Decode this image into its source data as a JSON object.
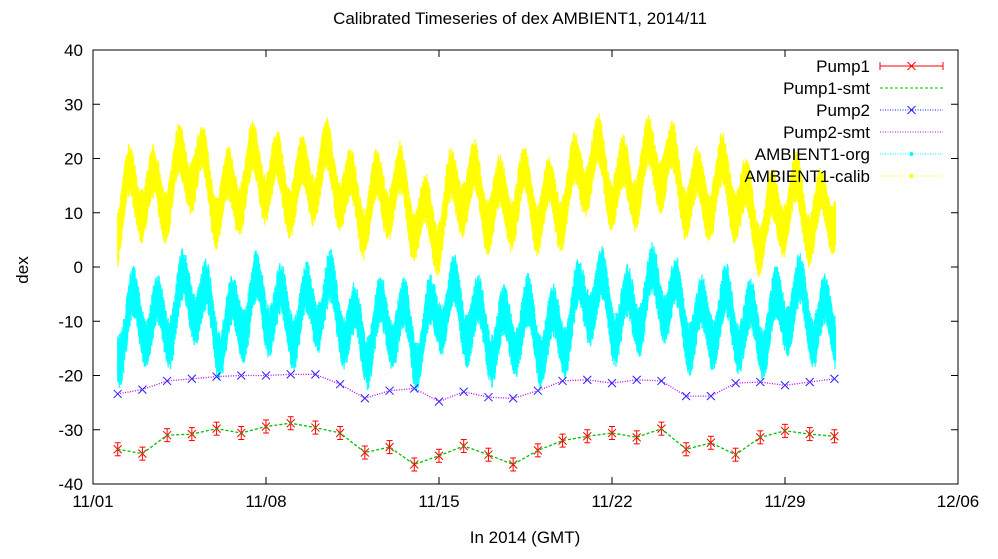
{
  "chart_data": {
    "type": "line",
    "title": "Calibrated Timeseries of dex AMBIENT1, 2014/11",
    "xlabel": "In 2014 (GMT)",
    "ylabel": "dex",
    "xlim": [
      "2014-11-01",
      "2014-12-06"
    ],
    "ylim": [
      -40,
      40
    ],
    "x_ticks": [
      "11/01",
      "11/08",
      "11/15",
      "11/22",
      "11/29",
      "12/06"
    ],
    "y_ticks": [
      -40,
      -30,
      -20,
      -10,
      0,
      10,
      20,
      30,
      40
    ],
    "grid": false,
    "legend_position": "top-right",
    "series": [
      {
        "name": "Pump1",
        "color": "#ff0000",
        "style": "points-errorbars-x",
        "points": [
          [
            "2014-11-02",
            -33.6
          ],
          [
            "2014-11-03",
            -34.4
          ],
          [
            "2014-11-04",
            -31.0
          ],
          [
            "2014-11-05",
            -30.8
          ],
          [
            "2014-11-06",
            -29.8
          ],
          [
            "2014-11-07",
            -30.6
          ],
          [
            "2014-11-08",
            -29.4
          ],
          [
            "2014-11-09",
            -28.8
          ],
          [
            "2014-11-10",
            -29.6
          ],
          [
            "2014-11-11",
            -30.6
          ],
          [
            "2014-11-12",
            -34.2
          ],
          [
            "2014-11-13",
            -33.2
          ],
          [
            "2014-11-14",
            -36.4
          ],
          [
            "2014-11-15",
            -34.8
          ],
          [
            "2014-11-16",
            -33.0
          ],
          [
            "2014-11-17",
            -34.6
          ],
          [
            "2014-11-18",
            -36.4
          ],
          [
            "2014-11-19",
            -33.8
          ],
          [
            "2014-11-20",
            -32.0
          ],
          [
            "2014-11-21",
            -31.2
          ],
          [
            "2014-11-22",
            -30.6
          ],
          [
            "2014-11-23",
            -31.4
          ],
          [
            "2014-11-24",
            -29.8
          ],
          [
            "2014-11-25",
            -33.6
          ],
          [
            "2014-11-26",
            -32.4
          ],
          [
            "2014-11-27",
            -34.6
          ],
          [
            "2014-11-28",
            -31.4
          ],
          [
            "2014-11-29",
            -30.2
          ],
          [
            "2014-11-30",
            -30.8
          ],
          [
            "2014-12-01",
            -31.2
          ]
        ]
      },
      {
        "name": "Pump1-smt",
        "color": "#00c000",
        "style": "dashed-line",
        "points": [
          [
            "2014-11-02",
            -33.6
          ],
          [
            "2014-11-03",
            -34.4
          ],
          [
            "2014-11-04",
            -31.0
          ],
          [
            "2014-11-05",
            -30.8
          ],
          [
            "2014-11-06",
            -29.8
          ],
          [
            "2014-11-07",
            -30.6
          ],
          [
            "2014-11-08",
            -29.4
          ],
          [
            "2014-11-09",
            -28.8
          ],
          [
            "2014-11-10",
            -29.6
          ],
          [
            "2014-11-11",
            -30.6
          ],
          [
            "2014-11-12",
            -34.2
          ],
          [
            "2014-11-13",
            -33.2
          ],
          [
            "2014-11-14",
            -36.4
          ],
          [
            "2014-11-15",
            -34.8
          ],
          [
            "2014-11-16",
            -33.0
          ],
          [
            "2014-11-17",
            -34.6
          ],
          [
            "2014-11-18",
            -36.4
          ],
          [
            "2014-11-19",
            -33.8
          ],
          [
            "2014-11-20",
            -32.0
          ],
          [
            "2014-11-21",
            -31.2
          ],
          [
            "2014-11-22",
            -30.6
          ],
          [
            "2014-11-23",
            -31.4
          ],
          [
            "2014-11-24",
            -29.8
          ],
          [
            "2014-11-25",
            -33.6
          ],
          [
            "2014-11-26",
            -32.4
          ],
          [
            "2014-11-27",
            -34.6
          ],
          [
            "2014-11-28",
            -31.4
          ],
          [
            "2014-11-29",
            -30.2
          ],
          [
            "2014-11-30",
            -30.8
          ],
          [
            "2014-12-01",
            -31.2
          ]
        ]
      },
      {
        "name": "Pump2",
        "color": "#2020ff",
        "style": "points-x",
        "points": [
          [
            "2014-11-02",
            -23.4
          ],
          [
            "2014-11-03",
            -22.6
          ],
          [
            "2014-11-04",
            -21.0
          ],
          [
            "2014-11-05",
            -20.6
          ],
          [
            "2014-11-06",
            -20.2
          ],
          [
            "2014-11-07",
            -20.0
          ],
          [
            "2014-11-08",
            -20.0
          ],
          [
            "2014-11-09",
            -19.8
          ],
          [
            "2014-11-10",
            -19.8
          ],
          [
            "2014-11-11",
            -21.6
          ],
          [
            "2014-11-12",
            -24.2
          ],
          [
            "2014-11-13",
            -22.8
          ],
          [
            "2014-11-14",
            -22.4
          ],
          [
            "2014-11-15",
            -24.8
          ],
          [
            "2014-11-16",
            -23.0
          ],
          [
            "2014-11-17",
            -24.0
          ],
          [
            "2014-11-18",
            -24.2
          ],
          [
            "2014-11-19",
            -22.8
          ],
          [
            "2014-11-20",
            -21.0
          ],
          [
            "2014-11-21",
            -20.8
          ],
          [
            "2014-11-22",
            -21.4
          ],
          [
            "2014-11-23",
            -20.8
          ],
          [
            "2014-11-24",
            -21.0
          ],
          [
            "2014-11-25",
            -23.8
          ],
          [
            "2014-11-26",
            -23.8
          ],
          [
            "2014-11-27",
            -21.4
          ],
          [
            "2014-11-28",
            -21.2
          ],
          [
            "2014-11-29",
            -21.8
          ],
          [
            "2014-11-30",
            -21.2
          ],
          [
            "2014-12-01",
            -20.6
          ]
        ]
      },
      {
        "name": "Pump2-smt",
        "color": "#c000ff",
        "style": "dotted-line",
        "points": [
          [
            "2014-11-02",
            -23.4
          ],
          [
            "2014-11-03",
            -22.6
          ],
          [
            "2014-11-04",
            -21.0
          ],
          [
            "2014-11-05",
            -20.6
          ],
          [
            "2014-11-06",
            -20.2
          ],
          [
            "2014-11-07",
            -20.0
          ],
          [
            "2014-11-08",
            -20.0
          ],
          [
            "2014-11-09",
            -19.8
          ],
          [
            "2014-11-10",
            -19.8
          ],
          [
            "2014-11-11",
            -21.6
          ],
          [
            "2014-11-12",
            -24.2
          ],
          [
            "2014-11-13",
            -22.8
          ],
          [
            "2014-11-14",
            -22.4
          ],
          [
            "2014-11-15",
            -24.8
          ],
          [
            "2014-11-16",
            -23.0
          ],
          [
            "2014-11-17",
            -24.0
          ],
          [
            "2014-11-18",
            -24.2
          ],
          [
            "2014-11-19",
            -22.8
          ],
          [
            "2014-11-20",
            -21.0
          ],
          [
            "2014-11-21",
            -20.8
          ],
          [
            "2014-11-22",
            -21.4
          ],
          [
            "2014-11-23",
            -20.8
          ],
          [
            "2014-11-24",
            -21.0
          ],
          [
            "2014-11-25",
            -23.8
          ],
          [
            "2014-11-26",
            -23.8
          ],
          [
            "2014-11-27",
            -21.4
          ],
          [
            "2014-11-28",
            -21.2
          ],
          [
            "2014-11-29",
            -21.8
          ],
          [
            "2014-11-30",
            -21.2
          ],
          [
            "2014-12-01",
            -20.6
          ]
        ]
      },
      {
        "name": "AMBIENT1-org",
        "color": "#00ffff",
        "style": "dense-band",
        "points": [
          [
            "2014-11-02",
            -15
          ],
          [
            "2014-11-03",
            -9
          ],
          [
            "2014-11-04",
            -8
          ],
          [
            "2014-11-05",
            -7
          ],
          [
            "2014-11-06",
            -10
          ],
          [
            "2014-11-07",
            -8
          ],
          [
            "2014-11-08",
            -9
          ],
          [
            "2014-11-09",
            -7
          ],
          [
            "2014-11-10",
            -8
          ],
          [
            "2014-11-11",
            -9
          ],
          [
            "2014-11-12",
            -11
          ],
          [
            "2014-11-13",
            -12
          ],
          [
            "2014-11-14",
            -13
          ],
          [
            "2014-11-15",
            -6
          ],
          [
            "2014-11-16",
            -11
          ],
          [
            "2014-11-17",
            -10
          ],
          [
            "2014-11-18",
            -12
          ],
          [
            "2014-11-19",
            -14
          ],
          [
            "2014-11-20",
            -9
          ],
          [
            "2014-11-21",
            -7
          ],
          [
            "2014-11-22",
            -8
          ],
          [
            "2014-11-23",
            -6
          ],
          [
            "2014-11-24",
            -7
          ],
          [
            "2014-11-25",
            -8
          ],
          [
            "2014-11-26",
            -10
          ],
          [
            "2014-11-27",
            -12
          ],
          [
            "2014-11-28",
            -9
          ],
          [
            "2014-11-29",
            -9
          ],
          [
            "2014-11-30",
            -9
          ],
          [
            "2014-12-01",
            -8
          ]
        ]
      },
      {
        "name": "AMBIENT1-calib",
        "color": "#ffff00",
        "style": "dense-band",
        "points": [
          [
            "2014-11-02",
            8
          ],
          [
            "2014-11-03",
            14
          ],
          [
            "2014-11-04",
            16
          ],
          [
            "2014-11-05",
            17
          ],
          [
            "2014-11-06",
            14
          ],
          [
            "2014-11-07",
            16
          ],
          [
            "2014-11-08",
            15
          ],
          [
            "2014-11-09",
            17
          ],
          [
            "2014-11-10",
            16
          ],
          [
            "2014-11-11",
            15
          ],
          [
            "2014-11-12",
            13
          ],
          [
            "2014-11-13",
            12
          ],
          [
            "2014-11-14",
            11
          ],
          [
            "2014-11-15",
            9
          ],
          [
            "2014-11-16",
            13
          ],
          [
            "2014-11-17",
            14
          ],
          [
            "2014-11-18",
            12
          ],
          [
            "2014-11-19",
            10
          ],
          [
            "2014-11-20",
            15
          ],
          [
            "2014-11-21",
            17
          ],
          [
            "2014-11-22",
            16
          ],
          [
            "2014-11-23",
            18
          ],
          [
            "2014-11-24",
            17
          ],
          [
            "2014-11-25",
            16
          ],
          [
            "2014-11-26",
            14
          ],
          [
            "2014-11-27",
            12
          ],
          [
            "2014-11-28",
            10
          ],
          [
            "2014-11-29",
            10
          ],
          [
            "2014-11-30",
            9
          ],
          [
            "2014-12-01",
            14
          ]
        ]
      }
    ]
  }
}
